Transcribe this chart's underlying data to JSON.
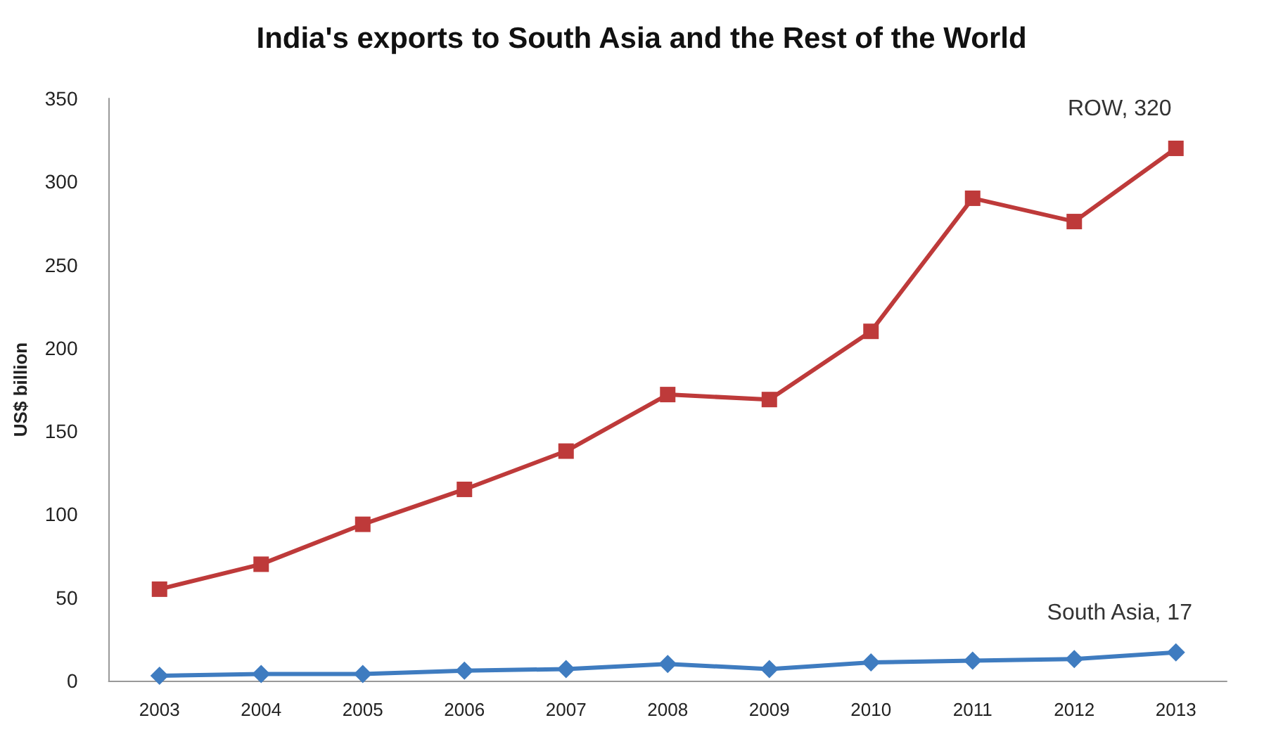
{
  "chart_data": {
    "type": "line",
    "title": "India's exports to South Asia and the Rest of the World",
    "ylabel": "US$ billion",
    "categories": [
      "2003",
      "2004",
      "2005",
      "2006",
      "2007",
      "2008",
      "2009",
      "2010",
      "2011",
      "2012",
      "2013"
    ],
    "series": [
      {
        "color": "#be3a3a",
        "marker": "square",
        "values": [
          55,
          70,
          94,
          115,
          138,
          172,
          169,
          210,
          290,
          276,
          320
        ]
      },
      {
        "color": "#3f7cc0",
        "marker": "diamond",
        "values": [
          3,
          4,
          4,
          6,
          7,
          10,
          7,
          11,
          12,
          13,
          17
        ]
      }
    ],
    "annotations": [
      {
        "text": "ROW, 320",
        "x": "2013",
        "y": 320
      },
      {
        "text": "South Asia, 17",
        "x": "2013",
        "y": 17
      }
    ],
    "ylim": [
      0,
      350
    ],
    "yticks": [
      0,
      50,
      100,
      150,
      200,
      250,
      300,
      350
    ],
    "grid": false
  }
}
